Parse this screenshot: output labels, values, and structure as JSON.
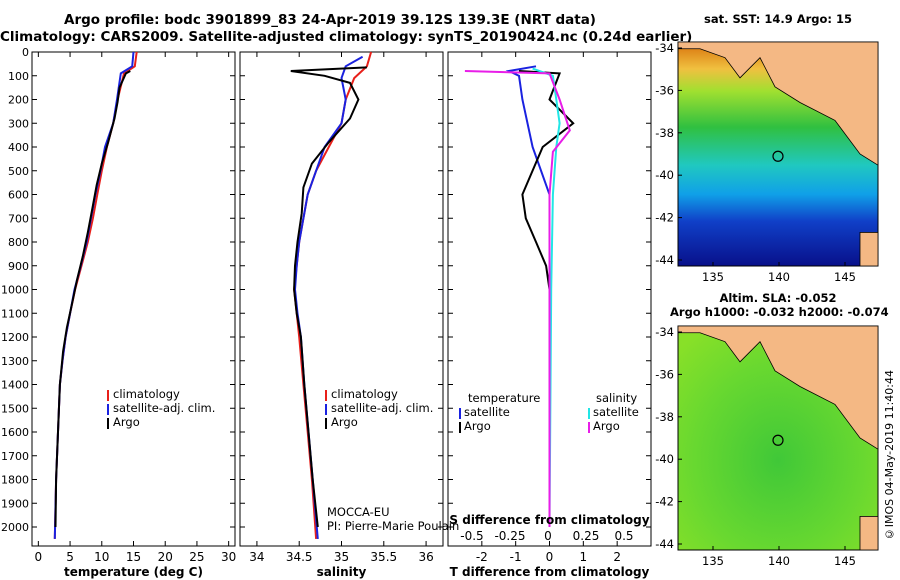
{
  "header": {
    "line1": "Argo profile: bodc 3901899_83 24-Apr-2019 39.12S 139.3E (NRT data)",
    "line2": "Climatology: CARS2009. Satellite-adjusted climatology: synTS_20190424.nc (0.24d earlier)"
  },
  "map_top": {
    "title": "sat. SST: 14.9 Argo: 15",
    "lat_ticks": [
      "-34",
      "-36",
      "-38",
      "-40",
      "-42",
      "-44"
    ],
    "lon_ticks": [
      "135",
      "140",
      "145"
    ]
  },
  "map_bottom": {
    "title1": "Altim. SLA: -0.052",
    "title2": "Argo h1000: -0.032 h2000: -0.074",
    "lat_ticks": [
      "-34",
      "-36",
      "-38",
      "-40",
      "-42",
      "-44"
    ],
    "lon_ticks": [
      "135",
      "140",
      "145"
    ]
  },
  "credit": "©IMOS 04-May-2019 11:40:44",
  "float_info": {
    "program": "MOCCA-EU",
    "pi": "PI: Pierre-Marie Poulain"
  },
  "colors": {
    "climatology": "#e8201a",
    "satellite": "#1a22e0",
    "argo": "#000000",
    "sat_salinity": "#22e6e6",
    "argo_salinity": "#e81ee8"
  },
  "chart_data": [
    {
      "type": "line",
      "xlabel": "temperature (deg C)",
      "ylabel": "",
      "xlim": [
        -1,
        31
      ],
      "ylim": [
        2080,
        0
      ],
      "xticks": [
        "0",
        "5",
        "10",
        "15",
        "20",
        "25",
        "30"
      ],
      "yticks": [
        "0",
        "100",
        "200",
        "300",
        "400",
        "500",
        "600",
        "700",
        "800",
        "900",
        "1000",
        "1100",
        "1200",
        "1300",
        "1400",
        "1500",
        "1600",
        "1700",
        "1800",
        "1900",
        "2000"
      ],
      "legend": [
        "climatology",
        "satellite-adj. clim.",
        "Argo"
      ],
      "series": [
        {
          "name": "climatology",
          "color": "#e8201a",
          "points": [
            [
              15.5,
              0
            ],
            [
              15.2,
              60
            ],
            [
              13.5,
              90
            ],
            [
              12.5,
              200
            ],
            [
              11.8,
              300
            ],
            [
              10.8,
              400
            ],
            [
              10,
              500
            ],
            [
              9.3,
              600
            ],
            [
              8.6,
              700
            ],
            [
              7.8,
              800
            ],
            [
              6.8,
              900
            ],
            [
              5.8,
              1000
            ],
            [
              5,
              1100
            ],
            [
              4.3,
              1200
            ],
            [
              3.8,
              1300
            ],
            [
              3.4,
              1400
            ],
            [
              3.1,
              1600
            ],
            [
              2.8,
              1800
            ],
            [
              2.6,
              2050
            ]
          ]
        },
        {
          "name": "satellite-adj. clim.",
          "color": "#1a22e0",
          "points": [
            [
              15,
              0
            ],
            [
              14.8,
              60
            ],
            [
              13,
              90
            ],
            [
              12.4,
              200
            ],
            [
              11.8,
              300
            ],
            [
              10.5,
              400
            ],
            [
              9.8,
              500
            ],
            [
              9,
              600
            ],
            [
              8.3,
              700
            ],
            [
              7.6,
              800
            ],
            [
              6.7,
              900
            ],
            [
              5.7,
              1000
            ],
            [
              5,
              1100
            ],
            [
              4.3,
              1200
            ],
            [
              3.8,
              1300
            ],
            [
              3.4,
              1400
            ],
            [
              3.1,
              1600
            ],
            [
              2.8,
              1800
            ],
            [
              2.6,
              2050
            ]
          ]
        },
        {
          "name": "Argo",
          "color": "#000000",
          "points": [
            [
              14.5,
              80
            ],
            [
              13.8,
              90
            ],
            [
              12.8,
              150
            ],
            [
              12.5,
              210
            ],
            [
              12,
              280
            ],
            [
              11,
              380
            ],
            [
              10,
              470
            ],
            [
              9.2,
              560
            ],
            [
              8.5,
              660
            ],
            [
              7.8,
              760
            ],
            [
              7,
              860
            ],
            [
              6.1,
              960
            ],
            [
              5.3,
              1060
            ],
            [
              4.5,
              1160
            ],
            [
              3.9,
              1260
            ],
            [
              3.4,
              1400
            ],
            [
              3.1,
              1600
            ],
            [
              2.8,
              1800
            ],
            [
              2.7,
              2000
            ]
          ]
        }
      ]
    },
    {
      "type": "line",
      "xlabel": "salinity",
      "ylabel": "",
      "xlim": [
        33.8,
        36.2
      ],
      "ylim": [
        2080,
        0
      ],
      "xticks": [
        "34",
        "34.5",
        "35",
        "35.5",
        "36"
      ],
      "legend": [
        "climatology",
        "satellite-adj. clim.",
        "Argo"
      ],
      "series": [
        {
          "name": "climatology",
          "color": "#e8201a",
          "points": [
            [
              35.35,
              0
            ],
            [
              35.3,
              60
            ],
            [
              35.15,
              110
            ],
            [
              35.05,
              200
            ],
            [
              35.0,
              300
            ],
            [
              34.85,
              400
            ],
            [
              34.7,
              500
            ],
            [
              34.6,
              600
            ],
            [
              34.55,
              700
            ],
            [
              34.5,
              800
            ],
            [
              34.47,
              900
            ],
            [
              34.44,
              1000
            ],
            [
              34.47,
              1100
            ],
            [
              34.5,
              1200
            ],
            [
              34.55,
              1400
            ],
            [
              34.6,
              1600
            ],
            [
              34.65,
              1800
            ],
            [
              34.7,
              2050
            ]
          ]
        },
        {
          "name": "satellite-adj. clim.",
          "color": "#1a22e0",
          "points": [
            [
              35.25,
              20
            ],
            [
              35.05,
              60
            ],
            [
              35.0,
              110
            ],
            [
              35.05,
              200
            ],
            [
              35.0,
              300
            ],
            [
              34.8,
              400
            ],
            [
              34.7,
              500
            ],
            [
              34.6,
              600
            ],
            [
              34.55,
              700
            ],
            [
              34.5,
              800
            ],
            [
              34.47,
              900
            ],
            [
              34.45,
              1000
            ],
            [
              34.48,
              1100
            ],
            [
              34.52,
              1200
            ],
            [
              34.56,
              1400
            ],
            [
              34.61,
              1600
            ],
            [
              34.66,
              1800
            ],
            [
              34.72,
              2050
            ]
          ]
        },
        {
          "name": "Argo",
          "color": "#000000",
          "points": [
            [
              35.3,
              65
            ],
            [
              34.4,
              80
            ],
            [
              34.8,
              100
            ],
            [
              35.1,
              130
            ],
            [
              35.2,
              200
            ],
            [
              35.1,
              280
            ],
            [
              34.85,
              380
            ],
            [
              34.65,
              470
            ],
            [
              34.55,
              570
            ],
            [
              34.53,
              680
            ],
            [
              34.48,
              800
            ],
            [
              34.45,
              900
            ],
            [
              34.44,
              1000
            ],
            [
              34.47,
              1100
            ],
            [
              34.52,
              1200
            ],
            [
              34.56,
              1400
            ],
            [
              34.61,
              1600
            ],
            [
              34.66,
              1800
            ],
            [
              34.72,
              2000
            ]
          ]
        }
      ]
    },
    {
      "type": "line",
      "xlabel": "T difference from climatology",
      "ylabel": "",
      "xlim": [
        -3.0,
        3.0
      ],
      "ylim": [
        2080,
        0
      ],
      "xticks": [
        "-2",
        "-1",
        "0",
        "1",
        "2"
      ],
      "top_xlabel": "S difference from climatology",
      "top_xticks": [
        "-0.5",
        "-0.25",
        "0",
        "0.25",
        "0.5"
      ],
      "legend": [
        "temperature",
        "satellite",
        "Argo",
        "salinity",
        "satellite",
        "Argo"
      ],
      "series": [
        {
          "name": "satellite",
          "group": "temperature",
          "color": "#1a22e0",
          "points": [
            [
              -0.4,
              60
            ],
            [
              -1.2,
              80
            ],
            [
              -0.9,
              100
            ],
            [
              -0.8,
              200
            ],
            [
              -0.5,
              400
            ],
            [
              0.0,
              600
            ],
            [
              0.0,
              1000
            ],
            [
              0.0,
              2000
            ]
          ]
        },
        {
          "name": "Argo",
          "group": "temperature",
          "color": "#000000",
          "points": [
            [
              -0.9,
              80
            ],
            [
              0.3,
              90
            ],
            [
              0.0,
              200
            ],
            [
              0.7,
              300
            ],
            [
              -0.2,
              400
            ],
            [
              -0.8,
              600
            ],
            [
              -0.7,
              700
            ],
            [
              -0.4,
              800
            ],
            [
              -0.1,
              900
            ],
            [
              0.0,
              1000
            ],
            [
              0.0,
              2000
            ]
          ]
        },
        {
          "name": "satellite",
          "group": "salinity",
          "color": "#22e6e6",
          "points": [
            [
              -0.5,
              70
            ],
            [
              0.1,
              100
            ],
            [
              0.2,
              200
            ],
            [
              0.3,
              300
            ],
            [
              0.2,
              400
            ],
            [
              0.1,
              600
            ],
            [
              0.05,
              1000
            ],
            [
              0.0,
              2000
            ]
          ]
        },
        {
          "name": "Argo",
          "group": "salinity",
          "color": "#e81ee8",
          "points": [
            [
              -2.5,
              80
            ],
            [
              0.0,
              90
            ],
            [
              0.3,
              200
            ],
            [
              0.6,
              330
            ],
            [
              0.1,
              420
            ],
            [
              0.0,
              600
            ],
            [
              0.0,
              1000
            ],
            [
              0.0,
              2000
            ]
          ]
        }
      ]
    }
  ]
}
